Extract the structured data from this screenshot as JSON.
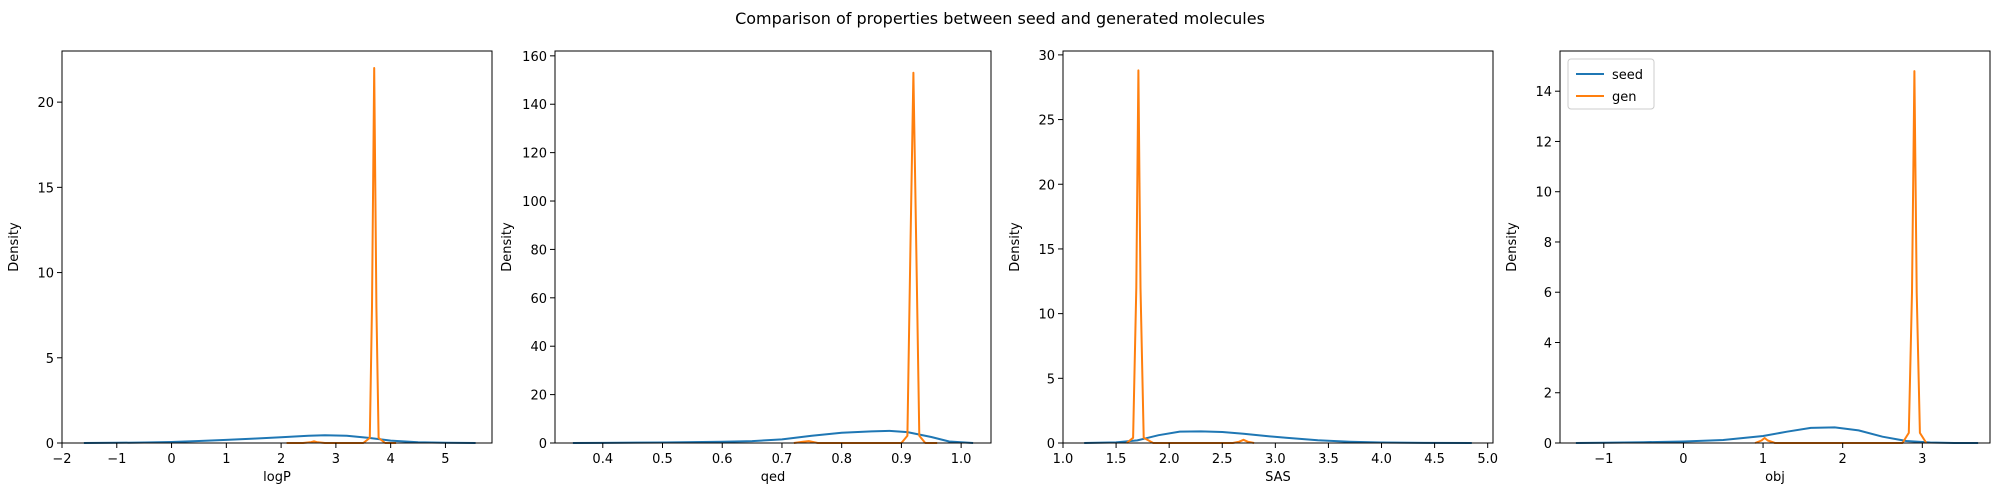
{
  "figure": {
    "title": "Comparison of properties between seed and generated molecules"
  },
  "colors": {
    "seed": "#1f77b4",
    "gen": "#ff7f0e"
  },
  "chart_data": [
    {
      "type": "line",
      "xlabel": "logP",
      "ylabel": "Density",
      "xlim": [
        -2,
        5.85
      ],
      "ylim": [
        0,
        23
      ],
      "xticks": [
        -2,
        -1,
        0,
        1,
        2,
        3,
        4,
        5
      ],
      "yticks": [
        0,
        5,
        10,
        15,
        20
      ],
      "legend": null,
      "series": [
        {
          "name": "seed",
          "x": [
            -1.6,
            -1.0,
            -0.5,
            0.0,
            0.5,
            1.0,
            1.5,
            2.0,
            2.5,
            2.8,
            3.2,
            3.6,
            4.0,
            4.5,
            5.0,
            5.55
          ],
          "y": [
            0.0,
            0.01,
            0.03,
            0.06,
            0.12,
            0.18,
            0.26,
            0.34,
            0.42,
            0.45,
            0.42,
            0.3,
            0.14,
            0.04,
            0.01,
            0.0
          ]
        },
        {
          "name": "gen",
          "x": [
            2.1,
            2.4,
            2.55,
            2.6,
            2.65,
            2.8,
            3.5,
            3.62,
            3.66,
            3.7,
            3.74,
            3.78,
            3.9,
            4.1
          ],
          "y": [
            0.0,
            0.0,
            0.05,
            0.1,
            0.05,
            0.0,
            0.0,
            0.3,
            8.0,
            22.0,
            8.0,
            0.3,
            0.0,
            0.0
          ]
        }
      ]
    },
    {
      "type": "line",
      "xlabel": "qed",
      "ylabel": "Density",
      "xlim": [
        0.32,
        1.05
      ],
      "ylim": [
        0,
        162
      ],
      "xticks": [
        0.4,
        0.5,
        0.6,
        0.7,
        0.8,
        0.9,
        1.0
      ],
      "yticks": [
        0,
        20,
        40,
        60,
        80,
        100,
        120,
        140,
        160
      ],
      "legend": null,
      "series": [
        {
          "name": "seed",
          "x": [
            0.35,
            0.4,
            0.5,
            0.6,
            0.65,
            0.7,
            0.75,
            0.8,
            0.85,
            0.88,
            0.91,
            0.95,
            0.98,
            1.02
          ],
          "y": [
            0.0,
            0.05,
            0.2,
            0.5,
            0.8,
            1.5,
            3.0,
            4.2,
            4.8,
            5.0,
            4.5,
            2.5,
            0.6,
            0.0
          ]
        },
        {
          "name": "gen",
          "x": [
            0.72,
            0.735,
            0.745,
            0.76,
            0.9,
            0.91,
            0.915,
            0.92,
            0.925,
            0.93,
            0.94,
            0.96
          ],
          "y": [
            0.0,
            0.5,
            0.8,
            0.0,
            0.0,
            3.0,
            80.0,
            153.0,
            80.0,
            3.0,
            0.0,
            0.0
          ]
        }
      ]
    },
    {
      "type": "line",
      "xlabel": "SAS",
      "ylabel": "Density",
      "xlim": [
        1.0,
        5.05
      ],
      "ylim": [
        0,
        30.3
      ],
      "xticks": [
        1.0,
        1.5,
        2.0,
        2.5,
        3.0,
        3.5,
        4.0,
        4.5,
        5.0
      ],
      "yticks": [
        0,
        5,
        10,
        15,
        20,
        25,
        30
      ],
      "legend": null,
      "series": [
        {
          "name": "seed",
          "x": [
            1.2,
            1.5,
            1.7,
            1.9,
            2.1,
            2.3,
            2.5,
            2.7,
            2.9,
            3.1,
            3.4,
            3.7,
            4.0,
            4.4,
            4.85
          ],
          "y": [
            0.0,
            0.05,
            0.2,
            0.6,
            0.88,
            0.9,
            0.85,
            0.72,
            0.55,
            0.4,
            0.22,
            0.1,
            0.04,
            0.01,
            0.0
          ]
        },
        {
          "name": "gen",
          "x": [
            1.6,
            1.66,
            1.69,
            1.71,
            1.73,
            1.76,
            1.85,
            2.6,
            2.66,
            2.7,
            2.74,
            2.8
          ],
          "y": [
            0.0,
            0.4,
            12.0,
            28.8,
            12.0,
            0.4,
            0.0,
            0.0,
            0.1,
            0.25,
            0.1,
            0.0
          ]
        }
      ]
    },
    {
      "type": "line",
      "xlabel": "obj",
      "ylabel": "Density",
      "xlim": [
        -1.55,
        3.85
      ],
      "ylim": [
        0,
        15.6
      ],
      "xticks": [
        -1,
        0,
        1,
        2,
        3
      ],
      "yticks": [
        0,
        2,
        4,
        6,
        8,
        10,
        12,
        14
      ],
      "legend": {
        "placement": "upper-left",
        "entries": [
          "seed",
          "gen"
        ]
      },
      "series": [
        {
          "name": "seed",
          "x": [
            -1.35,
            -1.0,
            -0.5,
            0.0,
            0.5,
            1.0,
            1.3,
            1.6,
            1.9,
            2.2,
            2.5,
            2.8,
            3.1,
            3.4,
            3.7
          ],
          "y": [
            0.0,
            0.01,
            0.03,
            0.06,
            0.12,
            0.28,
            0.45,
            0.6,
            0.62,
            0.5,
            0.25,
            0.08,
            0.02,
            0.0,
            0.0
          ]
        },
        {
          "name": "gen",
          "x": [
            0.9,
            0.98,
            1.02,
            1.06,
            1.15,
            2.75,
            2.83,
            2.87,
            2.9,
            2.93,
            2.97,
            3.05
          ],
          "y": [
            0.0,
            0.1,
            0.2,
            0.1,
            0.0,
            0.0,
            0.4,
            6.0,
            14.8,
            6.0,
            0.4,
            0.0
          ]
        }
      ]
    }
  ]
}
